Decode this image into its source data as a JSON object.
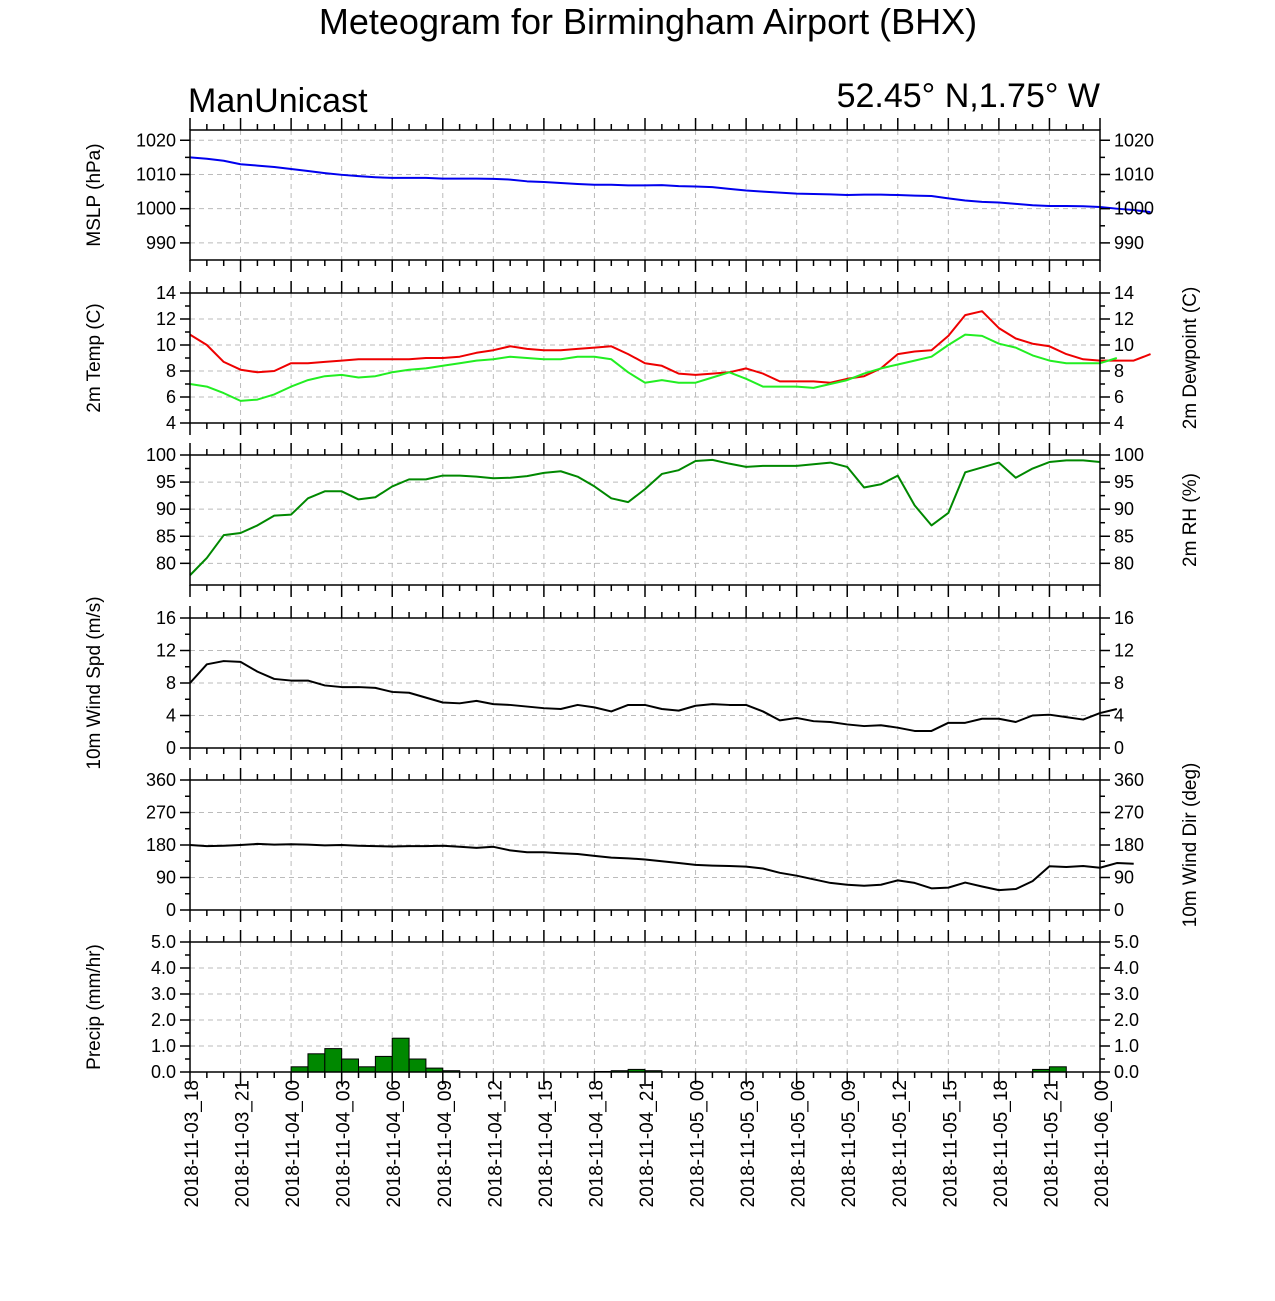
{
  "header": {
    "title": "Meteogram for Birmingham Airport (BHX)",
    "model": "ManUnicast",
    "location": "52.45° N,1.75° W"
  },
  "colors": {
    "mslp": "#0000ee",
    "temp": "#ee0000",
    "dewpoint": "#22ee22",
    "rh": "#008800",
    "wind": "#000000",
    "precip_fill": "#008800",
    "grid": "#bbbbbb"
  },
  "chart_data": {
    "type": "line",
    "grid": true,
    "x_tick_labels": [
      "2018-11-03_18",
      "2018-11-03_21",
      "2018-11-04_00",
      "2018-11-04_03",
      "2018-11-04_06",
      "2018-11-04_09",
      "2018-11-04_12",
      "2018-11-04_15",
      "2018-11-04_18",
      "2018-11-04_21",
      "2018-11-05_00",
      "2018-11-05_03",
      "2018-11-05_06",
      "2018-11-05_09",
      "2018-11-05_12",
      "2018-11-05_15",
      "2018-11-05_18",
      "2018-11-05_21",
      "2018-11-06_00"
    ],
    "hours_per_point": 1,
    "panels": [
      {
        "id": "mslp",
        "ylabel_left": "MSLP (hPa)",
        "ylabel_right": "",
        "ylim": [
          985,
          1023
        ],
        "yticks": [
          990,
          1000,
          1010,
          1020
        ],
        "ytick_labels": [
          "990",
          "1000",
          "1010",
          "1020"
        ],
        "series": [
          {
            "color": "#0000ee",
            "values": [
              1015.0,
              1014.6,
              1014.0,
              1013.0,
              1012.6,
              1012.2,
              1011.6,
              1011.0,
              1010.4,
              1009.9,
              1009.5,
              1009.2,
              1009.0,
              1009.0,
              1009.0,
              1008.8,
              1008.8,
              1008.8,
              1008.7,
              1008.5,
              1008.0,
              1007.8,
              1007.5,
              1007.2,
              1007.0,
              1007.0,
              1006.8,
              1006.8,
              1006.9,
              1006.6,
              1006.5,
              1006.3,
              1005.8,
              1005.3,
              1005.0,
              1004.7,
              1004.4,
              1004.3,
              1004.2,
              1004.0,
              1004.1,
              1004.1,
              1004.0,
              1003.8,
              1003.7,
              1003.0,
              1002.4,
              1002.0,
              1001.8,
              1001.4,
              1001.0,
              1000.8,
              1000.8,
              1000.7,
              1000.5,
              1000.0,
              999.6,
              999.0
            ]
          }
        ]
      },
      {
        "id": "temp",
        "ylabel_left": "2m Temp (C)",
        "ylabel_right": "2m Dewpoint (C)",
        "ylim": [
          4,
          14
        ],
        "yticks": [
          4,
          6,
          8,
          10,
          12,
          14
        ],
        "ytick_labels": [
          "4",
          "6",
          "8",
          "10",
          "12",
          "14"
        ],
        "series": [
          {
            "color": "#ee0000",
            "values": [
              10.8,
              10.0,
              8.7,
              8.1,
              7.9,
              8.0,
              8.6,
              8.6,
              8.7,
              8.8,
              8.9,
              8.9,
              8.9,
              8.9,
              9.0,
              9.0,
              9.1,
              9.4,
              9.6,
              9.9,
              9.7,
              9.6,
              9.6,
              9.7,
              9.8,
              9.9,
              9.3,
              8.6,
              8.4,
              7.8,
              7.7,
              7.8,
              7.9,
              8.2,
              7.8,
              7.2,
              7.2,
              7.2,
              7.1,
              7.4,
              7.6,
              8.2,
              9.3,
              9.5,
              9.6,
              10.7,
              12.3,
              12.6,
              11.3,
              10.5,
              10.1,
              9.9,
              9.3,
              8.9,
              8.8,
              8.8,
              8.8,
              9.3
            ]
          },
          {
            "color": "#22ee22",
            "values": [
              7.0,
              6.8,
              6.3,
              5.7,
              5.8,
              6.2,
              6.8,
              7.3,
              7.6,
              7.7,
              7.5,
              7.6,
              7.9,
              8.1,
              8.2,
              8.4,
              8.6,
              8.8,
              8.9,
              9.1,
              9.0,
              8.9,
              8.9,
              9.1,
              9.1,
              8.9,
              7.9,
              7.1,
              7.3,
              7.1,
              7.1,
              7.5,
              7.9,
              7.4,
              6.8,
              6.8,
              6.8,
              6.7,
              7.0,
              7.3,
              7.8,
              8.2,
              8.5,
              8.8,
              9.1,
              10.0,
              10.8,
              10.7,
              10.1,
              9.8,
              9.2,
              8.8,
              8.6,
              8.6,
              8.6,
              9.0
            ]
          }
        ]
      },
      {
        "id": "rh",
        "ylabel_left": "",
        "ylabel_right": "2m RH (%)",
        "ylim": [
          76,
          100
        ],
        "yticks": [
          80,
          85,
          90,
          95,
          100
        ],
        "ytick_labels": [
          "80",
          "85",
          "90",
          "95",
          "100"
        ],
        "series": [
          {
            "color": "#008800",
            "values": [
              77.8,
              81.0,
              85.2,
              85.6,
              87.0,
              88.8,
              89.0,
              92.0,
              93.3,
              93.3,
              91.8,
              92.2,
              94.2,
              95.5,
              95.5,
              96.2,
              96.2,
              96.0,
              95.7,
              95.8,
              96.1,
              96.7,
              97.0,
              96.0,
              94.2,
              92.0,
              91.3,
              93.7,
              96.5,
              97.2,
              98.9,
              99.1,
              98.4,
              97.8,
              98.0,
              98.0,
              98.0,
              98.3,
              98.6,
              97.8,
              94.0,
              94.6,
              96.2,
              90.7,
              87.0,
              89.3,
              96.8,
              97.7,
              98.6,
              95.8,
              97.5,
              98.7,
              99.0,
              99.0,
              98.7
            ]
          }
        ]
      },
      {
        "id": "wind_speed",
        "ylabel_left": "10m Wind Spd (m/s)",
        "ylabel_right": "",
        "ylim": [
          0,
          16
        ],
        "yticks": [
          0,
          4,
          8,
          12,
          16
        ],
        "ytick_labels": [
          "0",
          "4",
          "8",
          "12",
          "16"
        ],
        "series": [
          {
            "color": "#000000",
            "values": [
              8.0,
              10.3,
              10.7,
              10.6,
              9.4,
              8.5,
              8.3,
              8.3,
              7.7,
              7.5,
              7.5,
              7.4,
              6.9,
              6.8,
              6.2,
              5.6,
              5.5,
              5.8,
              5.4,
              5.3,
              5.1,
              4.9,
              4.8,
              5.3,
              5.0,
              4.5,
              5.3,
              5.3,
              4.8,
              4.6,
              5.2,
              5.4,
              5.3,
              5.3,
              4.5,
              3.4,
              3.7,
              3.3,
              3.2,
              2.9,
              2.7,
              2.8,
              2.5,
              2.1,
              2.1,
              3.1,
              3.1,
              3.6,
              3.6,
              3.2,
              4.0,
              4.1,
              3.8,
              3.5,
              4.3,
              4.8
            ]
          }
        ]
      },
      {
        "id": "wind_dir",
        "ylabel_left": "",
        "ylabel_right": "10m Wind Dir (deg)",
        "ylim": [
          0,
          360
        ],
        "yticks": [
          0,
          90,
          180,
          270,
          360
        ],
        "ytick_labels": [
          "0",
          "90",
          "180",
          "270",
          "360"
        ],
        "series": [
          {
            "color": "#000000",
            "values": [
              180,
              177,
              178,
              180,
              183,
              181,
              182,
              181,
              179,
              180,
              178,
              177,
              176,
              177,
              177,
              178,
              175,
              172,
              175,
              165,
              160,
              160,
              157,
              155,
              150,
              145,
              143,
              140,
              135,
              130,
              125,
              123,
              122,
              120,
              115,
              103,
              95,
              85,
              75,
              70,
              67,
              70,
              82,
              75,
              60,
              62,
              76,
              65,
              55,
              58,
              80,
              121,
              119,
              122,
              117,
              130,
              128
            ]
          }
        ]
      },
      {
        "id": "precip",
        "type": "bar",
        "ylabel_left": "Precip (mm/hr)",
        "ylabel_right": "",
        "ylim": [
          0,
          5
        ],
        "yticks": [
          0,
          1,
          2,
          3,
          4,
          5
        ],
        "ytick_labels": [
          "0.0",
          "1.0",
          "2.0",
          "3.0",
          "4.0",
          "5.0"
        ],
        "series": [
          {
            "color": "#008800",
            "values": [
              0,
              0,
              0,
              0,
              0,
              0,
              0.2,
              0.7,
              0.9,
              0.5,
              0.2,
              0.6,
              1.3,
              0.5,
              0.15,
              0.05,
              0,
              0,
              0,
              0,
              0,
              0,
              0,
              0,
              0.02,
              0.05,
              0.1,
              0.05,
              0,
              0,
              0,
              0,
              0,
              0,
              0,
              0,
              0,
              0,
              0,
              0,
              0,
              0,
              0,
              0,
              0,
              0,
              0,
              0,
              0,
              0,
              0.1,
              0.2,
              0,
              0,
              0,
              0,
              0,
              0,
              0,
              0,
              0,
              0,
              0,
              0,
              0,
              0,
              0,
              0,
              0,
              0,
              0,
              0,
              0
            ]
          }
        ]
      }
    ]
  }
}
